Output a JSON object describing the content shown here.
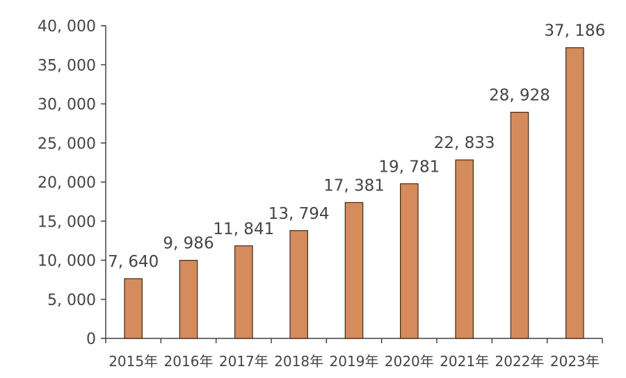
{
  "chart_data": {
    "type": "bar",
    "title": "",
    "xlabel": "",
    "ylabel": "",
    "categories": [
      "2015年",
      "2016年",
      "2017年",
      "2018年",
      "2019年",
      "2020年",
      "2021年",
      "2022年",
      "2023年"
    ],
    "values": [
      7640,
      9986,
      11841,
      13794,
      17381,
      19781,
      22833,
      28928,
      37186
    ],
    "data_labels": [
      "7, 640",
      "9, 986",
      "11, 841",
      "13, 794",
      "17, 381",
      "19, 781",
      "22, 833",
      "28, 928",
      "37, 186"
    ],
    "ylim": [
      0,
      40000
    ],
    "y_ticks": [
      0,
      5000,
      10000,
      15000,
      20000,
      25000,
      30000,
      35000,
      40000
    ],
    "y_tick_labels": [
      "0",
      "5, 000",
      "10, 000",
      "15, 000",
      "20, 000",
      "25, 000",
      "30, 000",
      "35, 000",
      "40, 000"
    ],
    "bar_color": "#d58b5c",
    "bar_edge_color": "#3a2a1a",
    "grid": false,
    "legend": "none"
  }
}
